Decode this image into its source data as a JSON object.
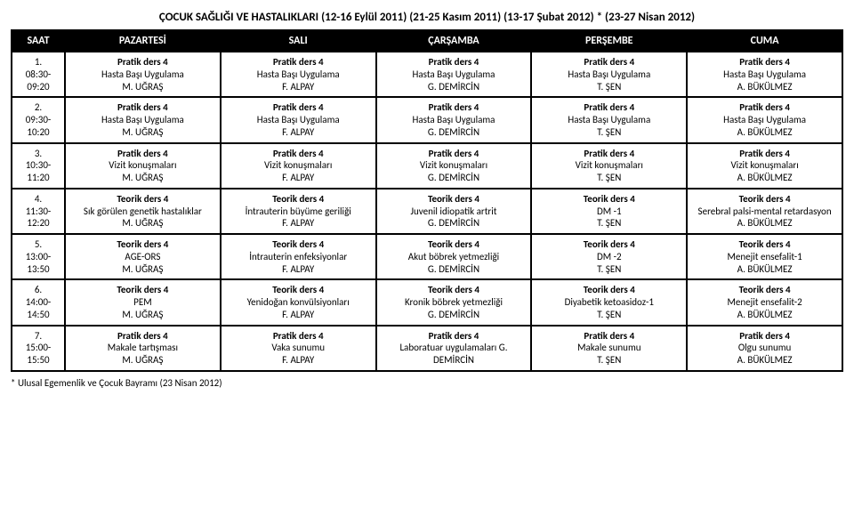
{
  "title": "ÇOCUK SAĞLIĞI VE HASTALIKLARI (12-16 Eylül 2011)   (21-25 Kasım 2011)   (13-17 Şubat 2012)  * (23-27 Nisan 2012)",
  "headers": [
    "SAAT",
    "PAZARTESİ",
    "SALI",
    "ÇARŞAMBA",
    "PERŞEMBE",
    "CUMA"
  ],
  "rows": [
    {
      "saat_no": "1.",
      "saat_time": "08:30-09:20",
      "cells": [
        {
          "t": "Pratik ders 4",
          "s": "Hasta Başı Uygulama",
          "i": "M. UĞRAŞ"
        },
        {
          "t": "Pratik ders 4",
          "s": "Hasta Başı Uygulama",
          "i": "F. ALPAY"
        },
        {
          "t": "Pratik ders 4",
          "s": "Hasta Başı Uygulama",
          "i": "G. DEMİRCİN"
        },
        {
          "t": "Pratik ders 4",
          "s": "Hasta Başı Uygulama",
          "i": "T. ŞEN"
        },
        {
          "t": "Pratik ders 4",
          "s": "Hasta Başı Uygulama",
          "i": "A. BÜKÜLMEZ"
        }
      ]
    },
    {
      "saat_no": "2.",
      "saat_time": "09:30-10:20",
      "cells": [
        {
          "t": "Pratik ders 4",
          "s": "Hasta Başı Uygulama",
          "i": "M. UĞRAŞ"
        },
        {
          "t": "Pratik ders 4",
          "s": "Hasta Başı Uygulama",
          "i": "F. ALPAY"
        },
        {
          "t": "Pratik ders 4",
          "s": "Hasta Başı Uygulama",
          "i": "G. DEMİRCİN"
        },
        {
          "t": "Pratik ders 4",
          "s": "Hasta Başı Uygulama",
          "i": "T. ŞEN"
        },
        {
          "t": "Pratik ders 4",
          "s": "Hasta Başı Uygulama",
          "i": "A. BÜKÜLMEZ"
        }
      ]
    },
    {
      "saat_no": "3.",
      "saat_time": "10:30-11:20",
      "cells": [
        {
          "t": "Pratik ders 4",
          "s": "Vizit konuşmaları",
          "i": "M. UĞRAŞ"
        },
        {
          "t": "Pratik ders 4",
          "s": "Vizit konuşmaları",
          "i": "F. ALPAY"
        },
        {
          "t": "Pratik ders 4",
          "s": "Vizit konuşmaları",
          "i": "G. DEMİRCİN"
        },
        {
          "t": "Pratik ders 4",
          "s": "Vizit konuşmaları",
          "i": "T. ŞEN"
        },
        {
          "t": "Pratik ders 4",
          "s": "Vizit konuşmaları",
          "i": "A. BÜKÜLMEZ"
        }
      ]
    },
    {
      "saat_no": "4.",
      "saat_time": "11:30-12:20",
      "cells": [
        {
          "t": "Teorik ders 4",
          "s": "Sık görülen genetik hastalıklar",
          "i": "M. UĞRAŞ"
        },
        {
          "t": "Teorik ders 4",
          "s": "İntrauterin büyüme geriliği",
          "i": "F. ALPAY"
        },
        {
          "t": "Teorik ders 4",
          "s": "Juvenil idiopatik artrit",
          "i": "G. DEMİRCİN"
        },
        {
          "t": "Teorik ders 4",
          "s": "DM -1",
          "i": "T. ŞEN"
        },
        {
          "t": "Teorik ders 4",
          "s": "Serebral palsi-mental retardasyon",
          "i": "A. BÜKÜLMEZ"
        }
      ]
    },
    {
      "saat_no": "5.",
      "saat_time": "13:00-13:50",
      "cells": [
        {
          "t": "Teorik ders 4",
          "s": "AGE-ORS",
          "i": "M. UĞRAŞ"
        },
        {
          "t": "Teorik ders 4",
          "s": "İntrauterin enfeksiyonlar",
          "i": "F. ALPAY"
        },
        {
          "t": "Teorik ders 4",
          "s": "Akut böbrek yetmezliği",
          "i": "G. DEMİRCİN"
        },
        {
          "t": "Teorik ders 4",
          "s": "DM -2",
          "i": "T. ŞEN"
        },
        {
          "t": "Teorik ders 4",
          "s": "Menejit ensefalit-1",
          "i": "A. BÜKÜLMEZ"
        }
      ]
    },
    {
      "saat_no": "6.",
      "saat_time": "14:00-14:50",
      "cells": [
        {
          "t": "Teorik ders 4",
          "s": "PEM",
          "i": "M. UĞRAŞ"
        },
        {
          "t": "Teorik ders 4",
          "s": "Yenidoğan konvülsiyonları",
          "i": "F. ALPAY"
        },
        {
          "t": "Teorik ders 4",
          "s": "Kronik böbrek yetmezliği",
          "i": "G. DEMİRCİN"
        },
        {
          "t": "Teorik ders 4",
          "s": "Diyabetik ketoasidoz-1",
          "i": "T. ŞEN"
        },
        {
          "t": "Teorik ders 4",
          "s": "Menejit ensefalit-2",
          "i": "A. BÜKÜLMEZ"
        }
      ]
    },
    {
      "saat_no": "7.",
      "saat_time": "15:00-15:50",
      "cells": [
        {
          "t": "Pratik ders 4",
          "s": "Makale tartışması",
          "i": "M. UĞRAŞ"
        },
        {
          "t": "Pratik ders 4",
          "s": "Vaka sunumu",
          "i": "F. ALPAY"
        },
        {
          "t": "Pratik ders 4",
          "s": "Laboratuar uygulamaları G. DEMİRCİN",
          "i": ""
        },
        {
          "t": "Pratik ders 4",
          "s": "Makale sunumu",
          "i": "T. ŞEN"
        },
        {
          "t": "Pratik ders 4",
          "s": "Olgu sunumu",
          "i": "A. BÜKÜLMEZ"
        }
      ]
    }
  ],
  "footnote": "* Ulusal Egemenlik ve Çocuk Bayramı (23 Nisan 2012)"
}
